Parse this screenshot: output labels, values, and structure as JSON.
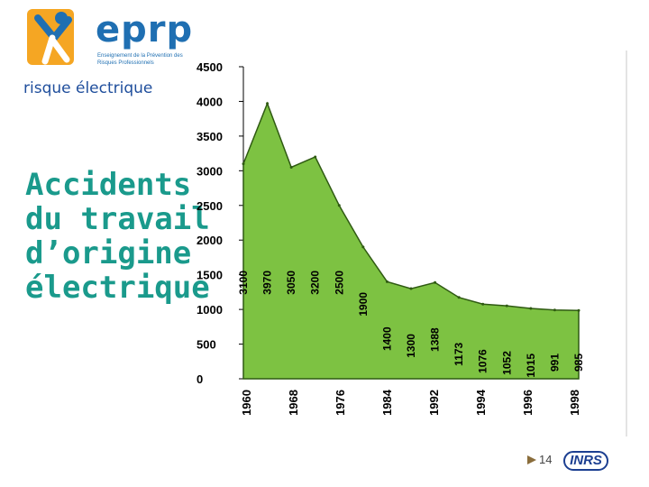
{
  "brand": {
    "logo_text": "eprp",
    "logo_tagline": "Enseignement de la Prévention des Risques Professionnels",
    "partner": "INRS"
  },
  "header": {
    "subtitle": "risque électrique"
  },
  "title_lines": [
    "Accidents",
    "du travail",
    "d’origine",
    "électrique"
  ],
  "footer": {
    "page_number": "14"
  },
  "colors": {
    "area_fill": "#7dc242",
    "area_stroke": "#2f5a12",
    "title": "#1a9a8c",
    "subtitle": "#1f4e9c",
    "brand_blue": "#1f6fb2",
    "brand_orange": "#f5a623"
  },
  "chart_data": {
    "type": "area",
    "title": "",
    "xlabel": "",
    "ylabel": "",
    "ylim": [
      0,
      4500
    ],
    "yticks": [
      "0",
      "500",
      "1000",
      "1500",
      "2000",
      "2500",
      "3000",
      "3500",
      "4000",
      "4500"
    ],
    "x_tick_labels": [
      "1960",
      "1968",
      "1976",
      "1984",
      "1992",
      "1994",
      "1996",
      "1998"
    ],
    "points": [
      {
        "value": 3100,
        "label": "3100"
      },
      {
        "value": 3970,
        "label": "3970"
      },
      {
        "value": 3050,
        "label": "3050"
      },
      {
        "value": 3200,
        "label": "3200"
      },
      {
        "value": 2500,
        "label": "2500"
      },
      {
        "value": 1900,
        "label": "1900"
      },
      {
        "value": 1400,
        "label": "1400"
      },
      {
        "value": 1300,
        "label": "1300"
      },
      {
        "value": 1388,
        "label": "1388"
      },
      {
        "value": 1173,
        "label": "1173"
      },
      {
        "value": 1076,
        "label": "1076"
      },
      {
        "value": 1052,
        "label": "1052"
      },
      {
        "value": 1015,
        "label": "1015"
      },
      {
        "value": 991,
        "label": "991"
      },
      {
        "value": 985,
        "label": "985"
      }
    ],
    "grid": false
  }
}
